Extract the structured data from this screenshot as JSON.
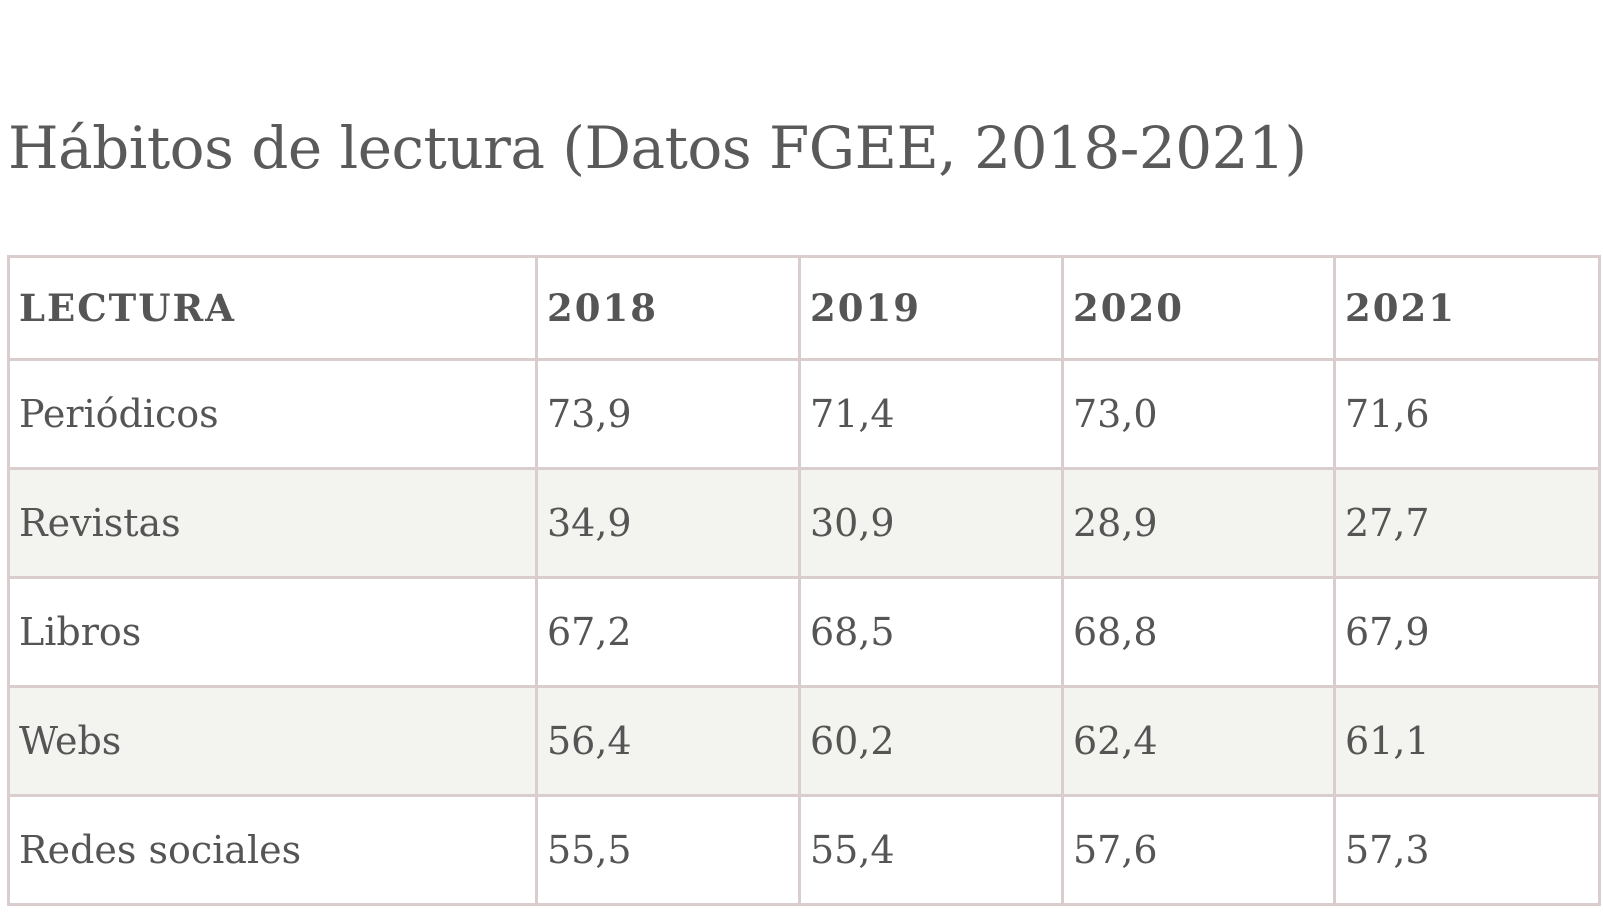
{
  "title": "Hábitos de lectura (Datos FGEE, 2018-2021)",
  "table": {
    "headers": [
      "LECTURA",
      "2018",
      "2019",
      "2020",
      "2021"
    ],
    "rows": [
      [
        "Periódicos",
        "73,9",
        "71,4",
        "73,0",
        "71,6"
      ],
      [
        "Revistas",
        "34,9",
        "30,9",
        "28,9",
        "27,7"
      ],
      [
        "Libros",
        "67,2",
        "68,5",
        "68,8",
        "67,9"
      ],
      [
        "Webs",
        "56,4",
        "60,2",
        "62,4",
        "61,1"
      ],
      [
        "Redes sociales",
        "55,5",
        "55,4",
        "57,6",
        "57,3"
      ]
    ]
  },
  "colors": {
    "text": "#555555",
    "border": "#d9cdcd",
    "stripe": "#f3f3ef",
    "background": "#ffffff"
  }
}
